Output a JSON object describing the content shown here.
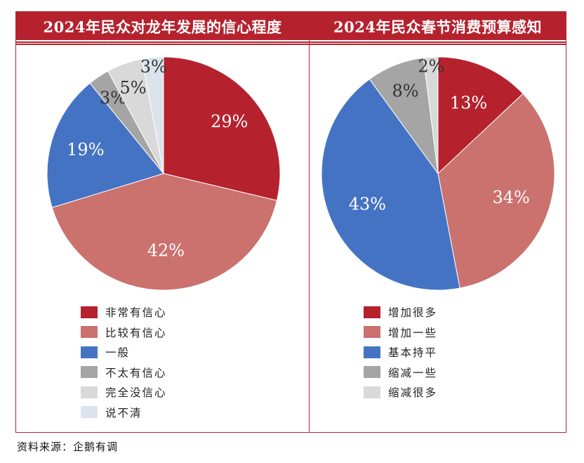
{
  "chart_data": [
    {
      "type": "pie",
      "title": "2024年民众对龙年发展的信心程度",
      "categories": [
        "非常有信心",
        "比较有信心",
        "一般",
        "不太有信心",
        "完全没信心",
        "说不清"
      ],
      "values": [
        29,
        42,
        19,
        3,
        5,
        3
      ],
      "labels": [
        "29%",
        "42%",
        "19%",
        "3%",
        "5%",
        "3%"
      ],
      "colors": [
        "#b5222e",
        "#cb716e",
        "#4573c4",
        "#a5a5a5",
        "#d9d9d9",
        "#dde3ec"
      ],
      "legend": "bottom"
    },
    {
      "type": "pie",
      "title": "2024年民众春节消费预算感知",
      "categories": [
        "增加很多",
        "增加一些",
        "基本持平",
        "缩减一些",
        "缩减很多"
      ],
      "values": [
        13,
        34,
        43,
        8,
        2
      ],
      "labels": [
        "13%",
        "34%",
        "43%",
        "8%",
        "2%"
      ],
      "colors": [
        "#b5222e",
        "#cb716e",
        "#4573c4",
        "#a5a5a5",
        "#d9d9d9"
      ],
      "legend": "bottom"
    }
  ],
  "source": "资料来源：企鹅有调"
}
